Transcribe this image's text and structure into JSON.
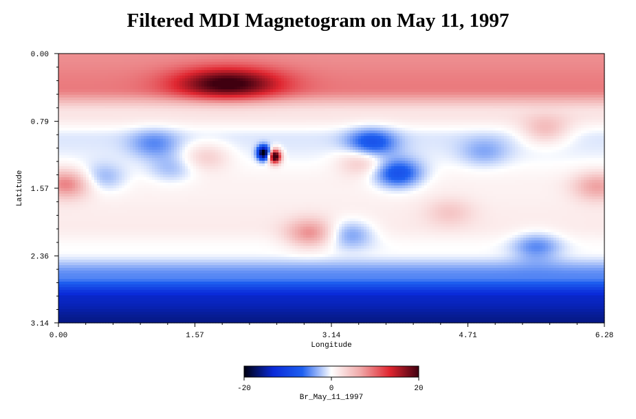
{
  "chart_data": {
    "type": "heatmap",
    "title": "Filtered MDI Magnetogram on May 11, 1997",
    "xlabel": "Longitude",
    "ylabel": "Latitude",
    "xlim": [
      0,
      6.28
    ],
    "ylim": [
      0,
      3.14
    ],
    "y_inverted": true,
    "x_ticks": [
      "0.00",
      "1.57",
      "3.14",
      "4.71",
      "6.28"
    ],
    "y_ticks": [
      "0.00",
      "0.79",
      "1.57",
      "2.36",
      "3.14"
    ],
    "colorbar": {
      "label": "Br_May_11_1997",
      "range": [
        -20,
        20
      ],
      "ticks": [
        "-20",
        "0",
        "20"
      ],
      "colors": [
        "#000010",
        "#0a2ad8",
        "#1e5ff0",
        "#ffffff",
        "#f0a8a8",
        "#e02630",
        "#400010"
      ]
    },
    "field": {
      "latitude_bands": [
        {
          "lat": 0.0,
          "value": 8
        },
        {
          "lat": 0.4,
          "value": 9
        },
        {
          "lat": 0.7,
          "value": 2
        },
        {
          "lat": 1.0,
          "value": -1
        },
        {
          "lat": 1.57,
          "value": 1
        },
        {
          "lat": 2.0,
          "value": 1.5
        },
        {
          "lat": 2.3,
          "value": 0
        },
        {
          "lat": 2.6,
          "value": -5
        },
        {
          "lat": 2.85,
          "value": -14
        },
        {
          "lat": 3.14,
          "value": -16
        }
      ],
      "features": [
        {
          "lon": 2.36,
          "lat": 1.16,
          "value": -22,
          "kind": "active-region-negative"
        },
        {
          "lon": 2.49,
          "lat": 1.2,
          "value": 24,
          "kind": "active-region-positive"
        },
        {
          "lon": 1.95,
          "lat": 0.35,
          "value": 12,
          "kind": "north-strong-positive"
        },
        {
          "lon": 3.6,
          "lat": 1.05,
          "value": -8,
          "kind": "negative"
        },
        {
          "lon": 3.9,
          "lat": 1.4,
          "value": -9,
          "kind": "negative"
        },
        {
          "lon": 3.5,
          "lat": 1.25,
          "value": 5,
          "kind": "positive"
        },
        {
          "lon": 0.1,
          "lat": 1.52,
          "value": 8,
          "kind": "positive"
        },
        {
          "lon": 6.2,
          "lat": 1.55,
          "value": 6,
          "kind": "positive"
        },
        {
          "lon": 2.9,
          "lat": 2.1,
          "value": 7,
          "kind": "positive"
        },
        {
          "lon": 3.35,
          "lat": 2.1,
          "value": -5,
          "kind": "negative"
        },
        {
          "lon": 5.6,
          "lat": 0.9,
          "value": 5,
          "kind": "positive"
        },
        {
          "lon": 0.5,
          "lat": 1.45,
          "value": -4,
          "kind": "negative"
        },
        {
          "lon": 1.3,
          "lat": 1.35,
          "value": -3,
          "kind": "negative"
        },
        {
          "lon": 1.7,
          "lat": 1.2,
          "value": 4,
          "kind": "positive"
        },
        {
          "lon": 5.5,
          "lat": 2.25,
          "value": -5,
          "kind": "negative"
        },
        {
          "lon": 4.5,
          "lat": 1.85,
          "value": 3,
          "kind": "positive"
        },
        {
          "lon": 1.1,
          "lat": 1.05,
          "value": -4,
          "kind": "negative"
        },
        {
          "lon": 4.9,
          "lat": 1.15,
          "value": -3,
          "kind": "negative"
        }
      ]
    }
  }
}
